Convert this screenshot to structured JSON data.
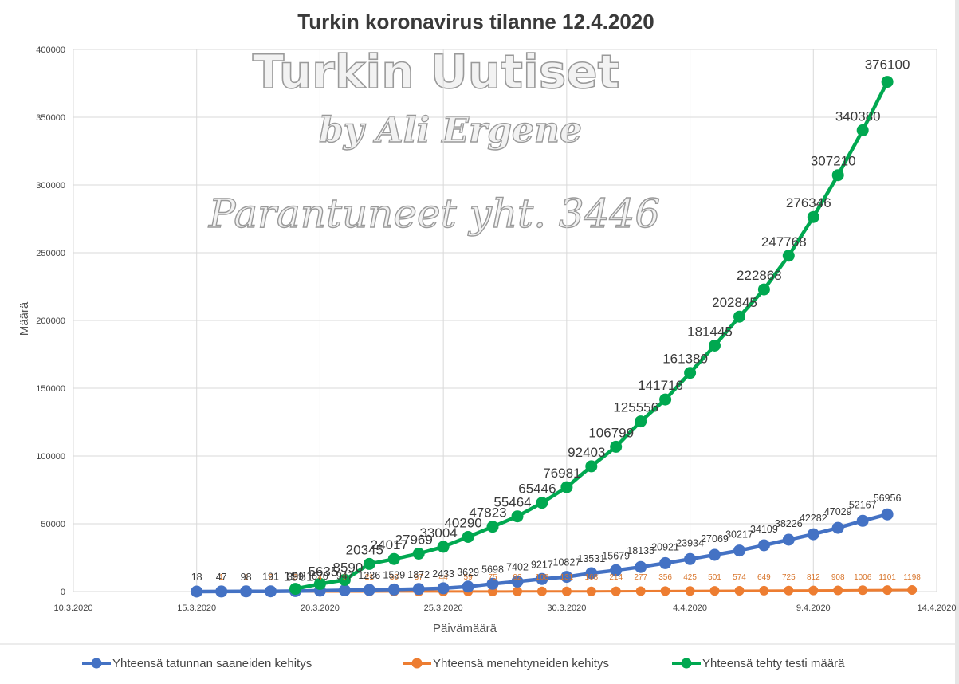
{
  "chart_data": {
    "type": "line",
    "title": "Turkin koronavirus tilanne 12.4.2020",
    "xlabel": "Päivämäärä",
    "ylabel": "Määrä",
    "ylim": [
      0,
      400000
    ],
    "xlim_dates": [
      "2020-03-10",
      "2020-04-14"
    ],
    "y_ticks": [
      "0",
      "50000",
      "100000",
      "150000",
      "200000",
      "250000",
      "300000",
      "350000",
      "400000"
    ],
    "x_ticks": [
      {
        "date": "2020-03-10",
        "label": "10.3.2020"
      },
      {
        "date": "2020-03-15",
        "label": "15.3.2020"
      },
      {
        "date": "2020-03-20",
        "label": "20.3.2020"
      },
      {
        "date": "2020-03-25",
        "label": "25.3.2020"
      },
      {
        "date": "2020-03-30",
        "label": "30.3.2020"
      },
      {
        "date": "2020-04-04",
        "label": "4.4.2020"
      },
      {
        "date": "2020-04-09",
        "label": "9.4.2020"
      },
      {
        "date": "2020-04-14",
        "label": "14.4.2020"
      }
    ],
    "grid": true,
    "legend_position": "bottom",
    "watermark": [
      "Turkin Uutiset",
      "by Ali Ergene",
      "Parantuneet yht. 3446"
    ],
    "series": [
      {
        "name": "Yhteensä tatunnan saaneiden kehitys",
        "color": "#4472c4",
        "start_date": "2020-03-15",
        "values": [
          18,
          47,
          98,
          191,
          359,
          670,
          947,
          1236,
          1529,
          1872,
          2433,
          3629,
          5698,
          7402,
          9217,
          10827,
          13531,
          15679,
          18135,
          20921,
          23934,
          27069,
          30217,
          34109,
          38226,
          42282,
          47029,
          52167,
          56956
        ],
        "labels": [
          "18",
          "47",
          "98",
          "191",
          "359",
          "670",
          "947",
          "1236",
          "1529",
          "1872",
          "2433",
          "3629",
          "5698",
          "7402",
          "9217",
          "10827",
          "13531",
          "15679",
          "18135",
          "20921",
          "23934",
          "27069",
          "30217",
          "34109",
          "38226",
          "42282",
          "47029",
          "52167",
          "56956"
        ]
      },
      {
        "name": "Yhteensä menehtyneiden kehitys",
        "color": "#ed7d31",
        "start_date": "2020-03-16",
        "values": [
          1,
          1,
          2,
          3,
          4,
          9,
          21,
          30,
          37,
          44,
          59,
          75,
          92,
          108,
          131,
          168,
          214,
          277,
          356,
          425,
          501,
          574,
          649,
          725,
          812,
          908,
          1006,
          1101,
          1198
        ],
        "labels": [
          "1",
          "1",
          "2",
          "3",
          "4",
          "9",
          "21",
          "30",
          "37",
          "44",
          "59",
          "75",
          "92",
          "108",
          "131",
          "168",
          "214",
          "277",
          "356",
          "425",
          "501",
          "574",
          "649",
          "725",
          "812",
          "908",
          "1006",
          "1101",
          "1198"
        ]
      },
      {
        "name": "Yhteensä tehty testi määrä",
        "color": "#00a850",
        "start_date": "2020-03-19",
        "values": [
          1981,
          5635,
          8590,
          20345,
          24017,
          27969,
          33004,
          40290,
          47823,
          55464,
          65446,
          76981,
          92403,
          106799,
          125556,
          141716,
          161380,
          181445,
          202845,
          222868,
          247768,
          276346,
          307210,
          340380,
          376100
        ],
        "labels": [
          "1981",
          "5635",
          "8590",
          "20345",
          "24017",
          "27969",
          "33004",
          "40290",
          "47823",
          "55464",
          "65446",
          "76981",
          "92403",
          "106799",
          "125556",
          "141716",
          "161380",
          "181445",
          "202845",
          "222868",
          "247768",
          "276346",
          "307210",
          "340380",
          "376100"
        ]
      }
    ]
  }
}
